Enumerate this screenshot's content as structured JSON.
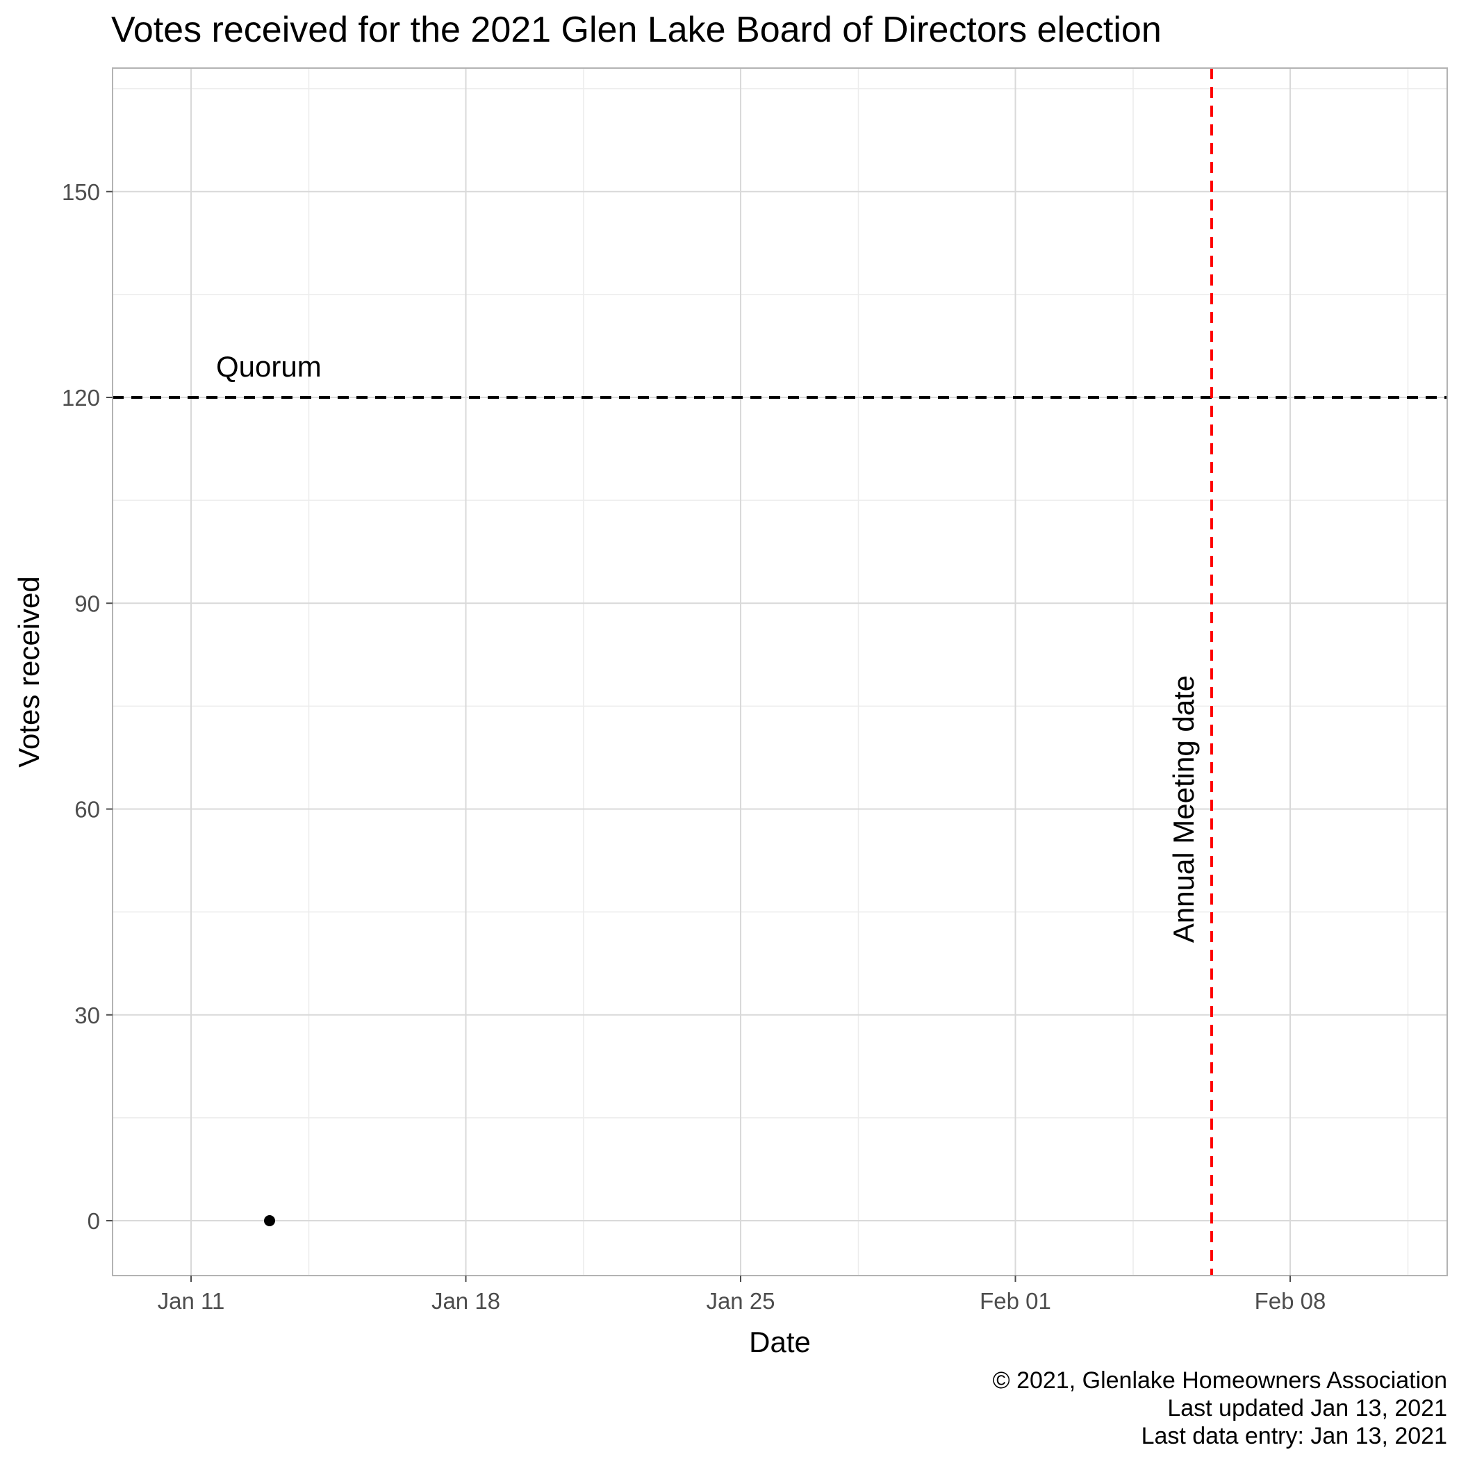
{
  "chart_data": {
    "type": "scatter",
    "title": "Votes received for the 2021 Glen Lake Board of Directors election",
    "xlabel": "Date",
    "ylabel": "Votes received",
    "x_type": "date",
    "xlim": [
      "2021-01-09",
      "2021-02-12"
    ],
    "ylim": [
      -8,
      168
    ],
    "x_ticks": [
      {
        "date": "2021-01-11",
        "label": "Jan 11"
      },
      {
        "date": "2021-01-18",
        "label": "Jan 18"
      },
      {
        "date": "2021-01-25",
        "label": "Jan 25"
      },
      {
        "date": "2021-02-01",
        "label": "Feb 01"
      },
      {
        "date": "2021-02-08",
        "label": "Feb 08"
      }
    ],
    "x_minor_ticks": [
      "2021-01-14",
      "2021-01-21",
      "2021-01-28",
      "2021-02-04",
      "2021-02-11"
    ],
    "y_ticks": [
      0,
      30,
      60,
      90,
      120,
      150
    ],
    "y_minor_ticks": [
      15,
      45,
      75,
      105,
      135,
      165
    ],
    "points": [
      {
        "x": "2021-01-13",
        "y": 0
      }
    ],
    "reference_lines": [
      {
        "orientation": "horizontal",
        "value": 120,
        "label": "Quorum",
        "color": "#000000",
        "style": "dashed"
      },
      {
        "orientation": "vertical",
        "value": "2021-02-06",
        "label": "Annual Meeting date",
        "color": "#ff0000",
        "style": "dashed"
      }
    ],
    "caption": [
      "© 2021, Glenlake Homeowners Association",
      "Last updated Jan 13, 2021",
      "Last data entry: Jan 13, 2021"
    ],
    "grid": true,
    "legend": "none",
    "point_color": "#000000"
  }
}
